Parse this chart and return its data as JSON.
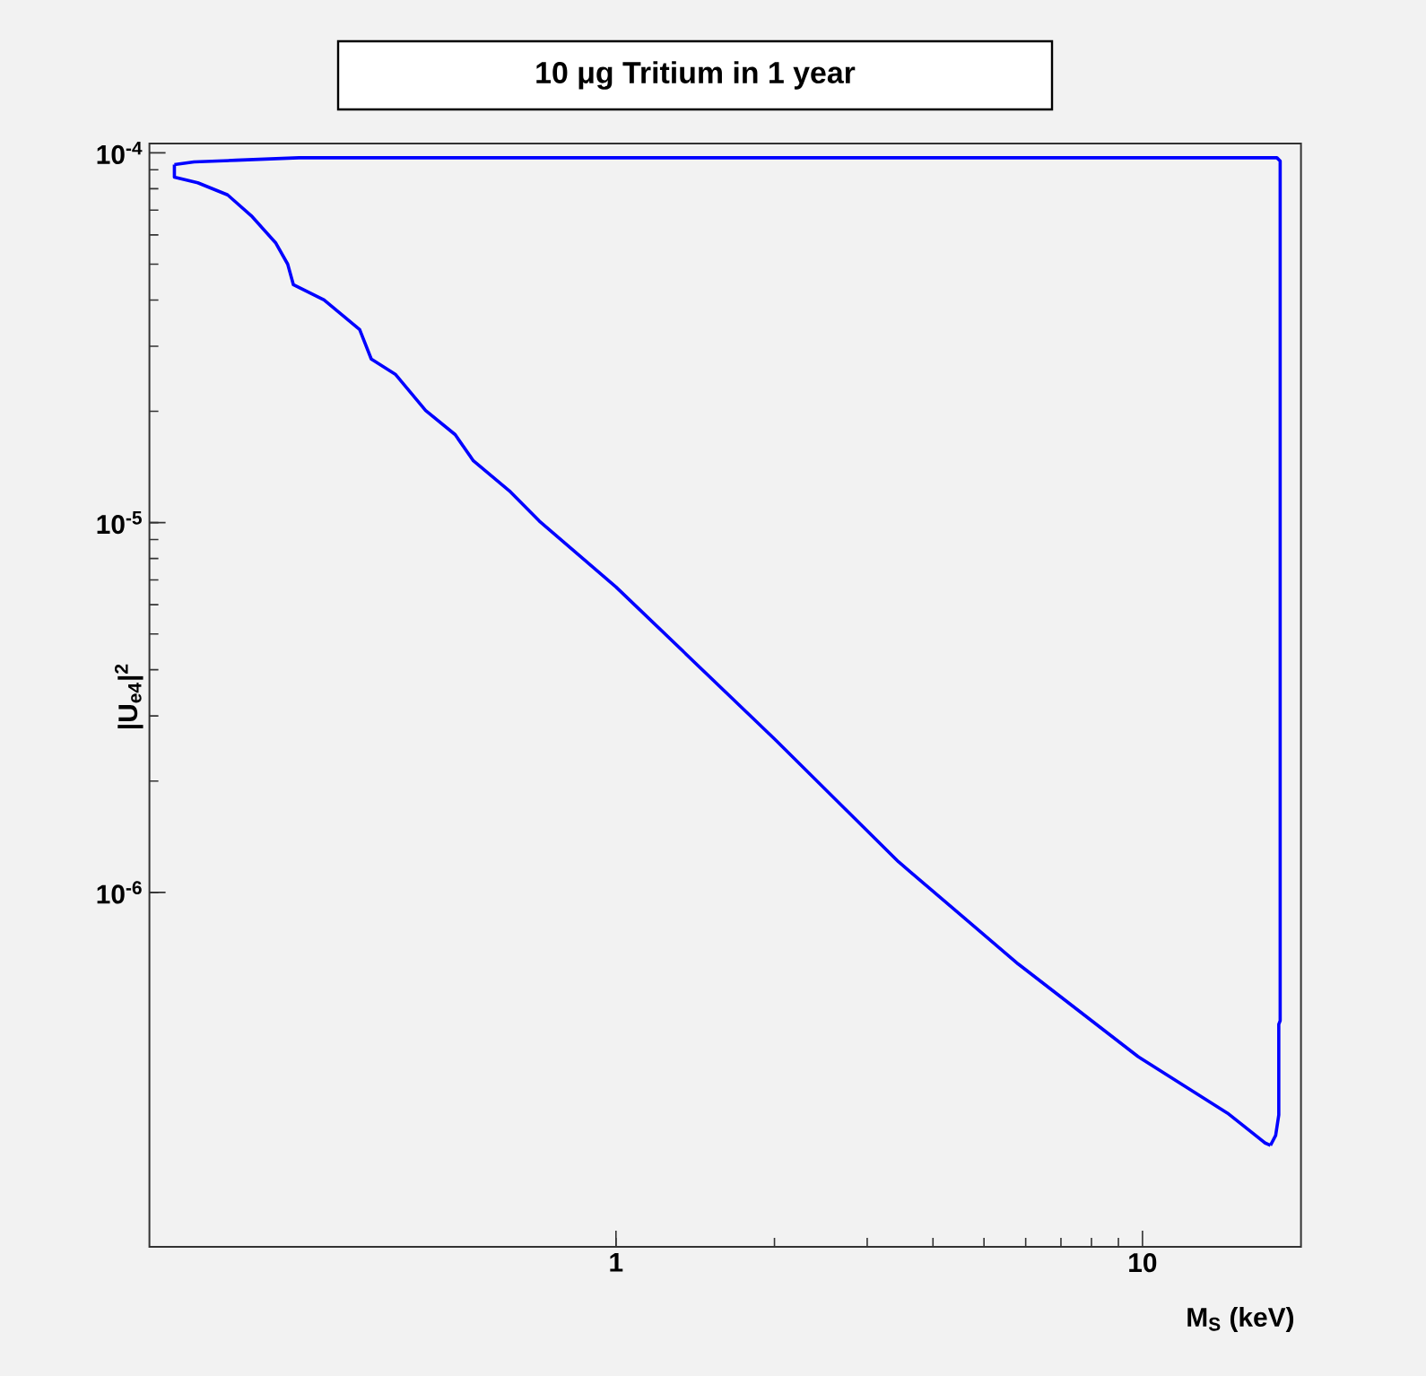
{
  "chart_data": {
    "type": "line",
    "title": "10 μg Tritium in 1 year",
    "xlabel": "M$_{S}$ (keV)",
    "ylabel": "|U$_{e4}$|$^{2}$",
    "log": "xy",
    "xlim": [
      0.13,
      20
    ],
    "ylim": [
      1.1e-07,
      0.000106
    ],
    "xticks": [
      1,
      10
    ],
    "yticks": [
      {
        "value": 1e-06,
        "label": "10$^{-6}$"
      },
      {
        "value": 1e-05,
        "label": "10$^{-5}$"
      },
      {
        "value": 0.0001,
        "label": "10$^{-4}$"
      }
    ],
    "series": [
      {
        "color": "#0000ff",
        "x": [
          0.145,
          0.158,
          0.19,
          0.25,
          18.0,
          18.26,
          18.26,
          18.15,
          18.15,
          17.9,
          17.5
        ],
        "values": [
          9.3e-05,
          9.45e-05,
          9.55e-05,
          9.7e-05,
          9.7e-05,
          9.5e-05,
          4.5e-07,
          4.4e-07,
          2.5e-07,
          2.2e-07,
          2.07e-07
        ]
      },
      {
        "color": "#0000ff",
        "x": [
          0.145,
          0.145,
          0.1606,
          0.183,
          0.203,
          0.226,
          0.238,
          0.244,
          0.279,
          0.326,
          0.343,
          0.381,
          0.435,
          0.495,
          0.536,
          0.627,
          0.715,
          1,
          2,
          3.44,
          5.81,
          9.8,
          14.5,
          17.1,
          17.5
        ],
        "values": [
          9.3e-05,
          8.6e-05,
          8.3e-05,
          7.7e-05,
          6.76e-05,
          5.7e-05,
          5e-05,
          4.4e-05,
          4e-05,
          3.33e-05,
          2.77e-05,
          2.52e-05,
          2.01e-05,
          1.73e-05,
          1.47e-05,
          1.22e-05,
          1.01e-05,
          6.7e-06,
          2.6e-06,
          1.21e-06,
          6.4e-07,
          3.6e-07,
          2.53e-07,
          2.1e-07,
          2.07e-07
        ]
      }
    ]
  }
}
